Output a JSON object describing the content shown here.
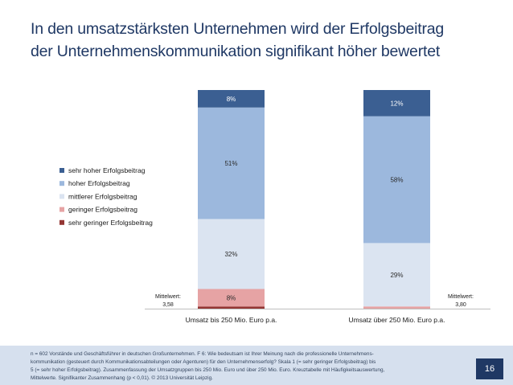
{
  "slide": {
    "title_line1": "In den umsatzstärksten Unternehmen wird der Erfolgsbeitrag",
    "title_line2": "der Unternehmenskommunikation signifikant höher bewertet",
    "footnote_lines": [
      "n = 602 Vorstände und Geschäftsführer in deutschen Großunternehmen.  F 6: Wie bedeutsam ist Ihrer Meinung nach die professionelle Unternehmens-",
      "kommunikation (gesteuert durch Kommunikationsabteilungen oder Agenturen) für den Unternehmenserfolg? Skala 1 (= sehr geringer  Erfolgsbeitrag) bis",
      "5  (= sehr hoher Erfolgsbeitrag). Zusammenfassung der Umsatzgruppen bis 250 Mio. Euro und über 250 Mio. Euro. Kreuztabelle mit Häufigkeitsauswertung,",
      "Mittelwerte. Signifikanter Zusammenhang (p < 0,01).  © 2013 Universität Leipzig."
    ],
    "page_number": "16"
  },
  "chart_data": {
    "type": "bar",
    "stacked": true,
    "orientation": "vertical",
    "categories": [
      "Umsatz bis 250 Mio. Euro p.a.",
      "Umsatz über 250 Mio. Euro p.a."
    ],
    "series": [
      {
        "name": "sehr geringer Erfolgsbeitrag",
        "color": "#943634",
        "values": [
          1,
          0
        ],
        "labels": [
          "",
          ""
        ]
      },
      {
        "name": "geringer Erfolgsbeitrag",
        "color": "#e6a3a4",
        "values": [
          8,
          1
        ],
        "labels": [
          "8%",
          ""
        ]
      },
      {
        "name": "mittlerer Erfolgsbeitrag",
        "color": "#dbe4f1",
        "values": [
          32,
          29
        ],
        "labels": [
          "32%",
          "29%"
        ]
      },
      {
        "name": "hoher Erfolgsbeitrag",
        "color": "#9cb8dd",
        "values": [
          51,
          58
        ],
        "labels": [
          "51%",
          "58%"
        ]
      },
      {
        "name": "sehr hoher Erfolgsbeitrag",
        "color": "#3b5f92",
        "values": [
          8,
          12
        ],
        "labels": [
          "8%",
          "12%"
        ]
      }
    ],
    "means": [
      {
        "label": "Mittelwert:",
        "value": "3,58"
      },
      {
        "label": "Mittelwert:",
        "value": "3,80"
      }
    ],
    "legend_order": [
      "sehr hoher Erfolgsbeitrag",
      "hoher Erfolgsbeitrag",
      "mittlerer Erfolgsbeitrag",
      "geringer Erfolgsbeitrag",
      "sehr geringer Erfolgsbeitrag"
    ],
    "legend_position": "left",
    "ylim": [
      0,
      100
    ],
    "xlabel": "",
    "ylabel": ""
  }
}
